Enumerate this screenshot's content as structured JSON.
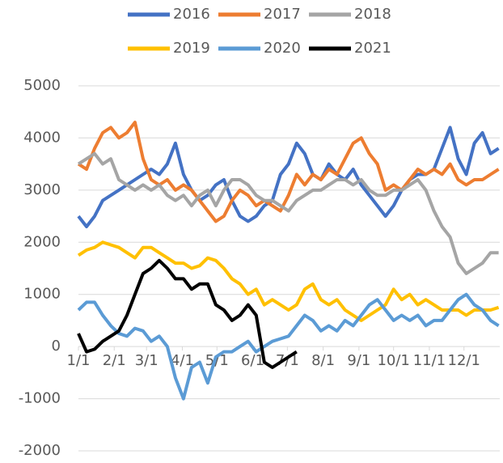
{
  "chart_data": {
    "type": "line",
    "x": [
      0,
      7,
      14,
      21,
      28,
      35,
      42,
      49,
      56,
      63,
      70,
      77,
      84,
      91,
      98,
      105,
      112,
      119,
      126,
      133,
      140,
      147,
      154,
      161,
      168,
      175,
      182,
      189,
      196,
      203,
      210,
      217,
      224,
      231,
      238,
      245,
      252,
      259,
      266,
      273,
      280,
      287,
      294,
      301,
      308,
      315,
      322,
      329,
      336,
      343,
      350,
      357,
      364
    ],
    "xlim": [
      0,
      365
    ],
    "xticks": [
      {
        "value": 0,
        "label": "1/1"
      },
      {
        "value": 31,
        "label": "2/1"
      },
      {
        "value": 59,
        "label": "3/1"
      },
      {
        "value": 90,
        "label": "4/1"
      },
      {
        "value": 120,
        "label": "5/1"
      },
      {
        "value": 151,
        "label": "6/1"
      },
      {
        "value": 181,
        "label": "7/1"
      },
      {
        "value": 212,
        "label": "8/1"
      },
      {
        "value": 243,
        "label": "9/1"
      },
      {
        "value": 273,
        "label": "10/1"
      },
      {
        "value": 304,
        "label": "11/1"
      },
      {
        "value": 334,
        "label": "12/1"
      }
    ],
    "ylim": [
      -2000,
      5000
    ],
    "yticks": [
      -2000,
      -1000,
      0,
      1000,
      2000,
      3000,
      4000,
      5000
    ],
    "grid": true,
    "legend": "top",
    "series": [
      {
        "name": "2016",
        "color": "#4472c4",
        "values": [
          2500,
          2300,
          2500,
          2800,
          2900,
          3000,
          3100,
          3200,
          3300,
          3400,
          3300,
          3500,
          3900,
          3300,
          3000,
          2800,
          2900,
          3100,
          3200,
          2800,
          2500,
          2400,
          2500,
          2700,
          2800,
          3300,
          3500,
          3900,
          3700,
          3300,
          3200,
          3500,
          3300,
          3200,
          3400,
          3100,
          2900,
          2700,
          2500,
          2700,
          3000,
          3200,
          3300,
          3300,
          3400,
          3800,
          4200,
          3600,
          3300,
          3900,
          4100,
          3700,
          3800
        ]
      },
      {
        "name": "2017",
        "color": "#ed7d31",
        "values": [
          3500,
          3400,
          3800,
          4100,
          4200,
          4000,
          4100,
          4300,
          3600,
          3200,
          3100,
          3200,
          3000,
          3100,
          3000,
          2800,
          2600,
          2400,
          2500,
          2800,
          3000,
          2900,
          2700,
          2800,
          2700,
          2600,
          2900,
          3300,
          3100,
          3300,
          3200,
          3400,
          3300,
          3600,
          3900,
          4000,
          3700,
          3500,
          3000,
          3100,
          3000,
          3200,
          3400,
          3300,
          3400,
          3300,
          3500,
          3200,
          3100,
          3200,
          3200,
          3300,
          3400
        ]
      },
      {
        "name": "2018",
        "color": "#a5a5a5",
        "values": [
          3500,
          3600,
          3700,
          3500,
          3600,
          3200,
          3100,
          3000,
          3100,
          3000,
          3100,
          2900,
          2800,
          2900,
          2700,
          2900,
          3000,
          2700,
          3000,
          3200,
          3200,
          3100,
          2900,
          2800,
          2800,
          2700,
          2600,
          2800,
          2900,
          3000,
          3000,
          3100,
          3200,
          3200,
          3100,
          3200,
          3000,
          2900,
          2900,
          3000,
          3000,
          3100,
          3200,
          3000,
          2600,
          2300,
          2100,
          1600,
          1400,
          1500,
          1600,
          1800,
          1800
        ]
      },
      {
        "name": "2019",
        "color": "#ffc000",
        "values": [
          1750,
          1850,
          1900,
          2000,
          1950,
          1900,
          1800,
          1700,
          1900,
          1900,
          1800,
          1700,
          1600,
          1600,
          1500,
          1550,
          1700,
          1650,
          1500,
          1300,
          1200,
          1000,
          1100,
          800,
          900,
          800,
          700,
          800,
          1100,
          1200,
          900,
          800,
          900,
          700,
          600,
          500,
          600,
          700,
          800,
          1100,
          900,
          1000,
          800,
          900,
          800,
          700,
          700,
          700,
          600,
          700,
          700,
          700,
          750
        ]
      },
      {
        "name": "2020",
        "color": "#5b9bd5",
        "values": [
          700,
          850,
          850,
          600,
          400,
          250,
          200,
          350,
          300,
          100,
          200,
          0,
          -600,
          -1000,
          -400,
          -300,
          -700,
          -200,
          -100,
          -100,
          0,
          100,
          -100,
          0,
          100,
          150,
          200,
          400,
          600,
          500,
          300,
          400,
          300,
          500,
          400,
          600,
          800,
          900,
          700,
          500,
          600,
          500,
          600,
          400,
          500,
          500,
          700,
          900,
          1000,
          800,
          700,
          500,
          400
        ]
      },
      {
        "name": "2021",
        "color": "#000000",
        "values": [
          250,
          -100,
          -50,
          100,
          200,
          300,
          600,
          1000,
          1400,
          1500,
          1650,
          1500,
          1300,
          1300,
          1100,
          1200,
          1200,
          800,
          700,
          500,
          600,
          800,
          600,
          -300,
          -400,
          -300,
          -200,
          -100,
          null,
          null,
          null,
          null,
          null,
          null,
          null,
          null,
          null,
          null,
          null,
          null,
          null,
          null,
          null,
          null,
          null,
          null,
          null,
          null,
          null,
          null,
          null,
          null,
          null
        ]
      }
    ]
  }
}
